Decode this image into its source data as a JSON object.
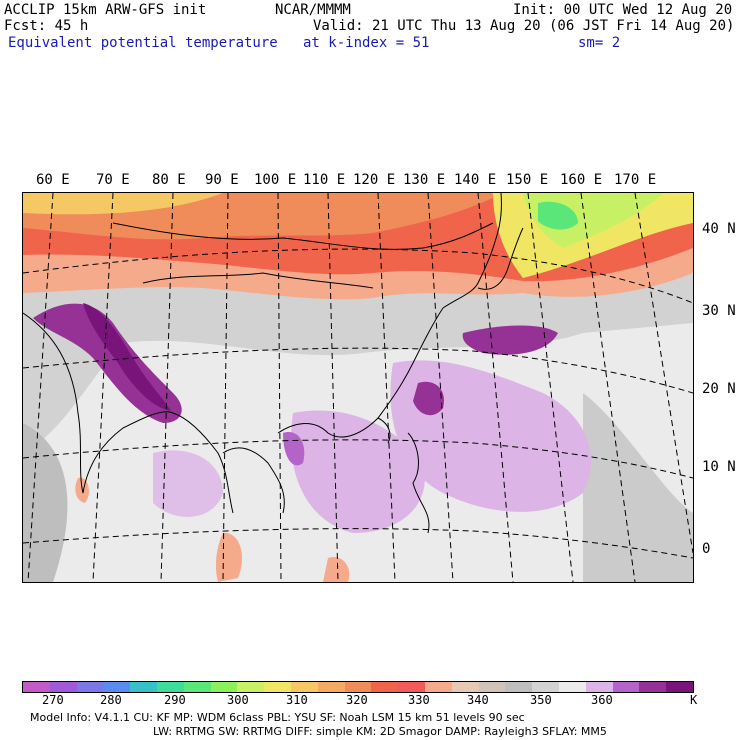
{
  "header": {
    "model": "ACCLIP 15km ARW-GFS init",
    "fcst": "Fcst:   45 h",
    "field": "Equivalent potential temperature",
    "center": "NCAR/MMMM",
    "level": "at k-index =  51",
    "init": "Init: 00 UTC Wed 12 Aug 20",
    "valid": "Valid: 21 UTC Thu 13 Aug 20 (06 JST Fri 14 Aug 20)",
    "smooth": "sm= 2"
  },
  "map": {
    "lon_labels": [
      "60 E",
      "70 E",
      "80 E",
      "90 E",
      "100 E",
      "110 E",
      "120 E",
      "130 E",
      "140 E",
      "150 E",
      "160 E",
      "170 E"
    ],
    "lat_labels": [
      "40 N",
      "30 N",
      "20 N",
      "10 N",
      "0"
    ]
  },
  "colorbar": {
    "colors": [
      "#c45ac8",
      "#a05ad8",
      "#7c78e8",
      "#5a8cf0",
      "#38c0c8",
      "#3cdc9c",
      "#5ae678",
      "#8cf05a",
      "#c8f064",
      "#f0e664",
      "#f5c864",
      "#f5aa64",
      "#f08c5a",
      "#f0644b",
      "#f55a5a",
      "#f5aa8c",
      "#e6c8b4",
      "#d2c3b9",
      "#bebebe",
      "#d2d2d2",
      "#ebebeb",
      "#dcb4e6",
      "#b464c8",
      "#963296",
      "#78147a"
    ],
    "ticks": [
      "270",
      "280",
      "290",
      "300",
      "310",
      "320",
      "330",
      "340",
      "350",
      "360"
    ],
    "unit": "K"
  },
  "footer": {
    "line1": "Model Info: V4.1.1      CU: KF        MP: WDM 6class  PBL: YSU       SF: Noah LSM     15 km    51 levels    90 sec",
    "line2": "LW: RRTMG    SW: RRTMG   DIFF: simple KM: 2D Smagor DAMP: Rayleigh3   SFLAY: MM5"
  }
}
